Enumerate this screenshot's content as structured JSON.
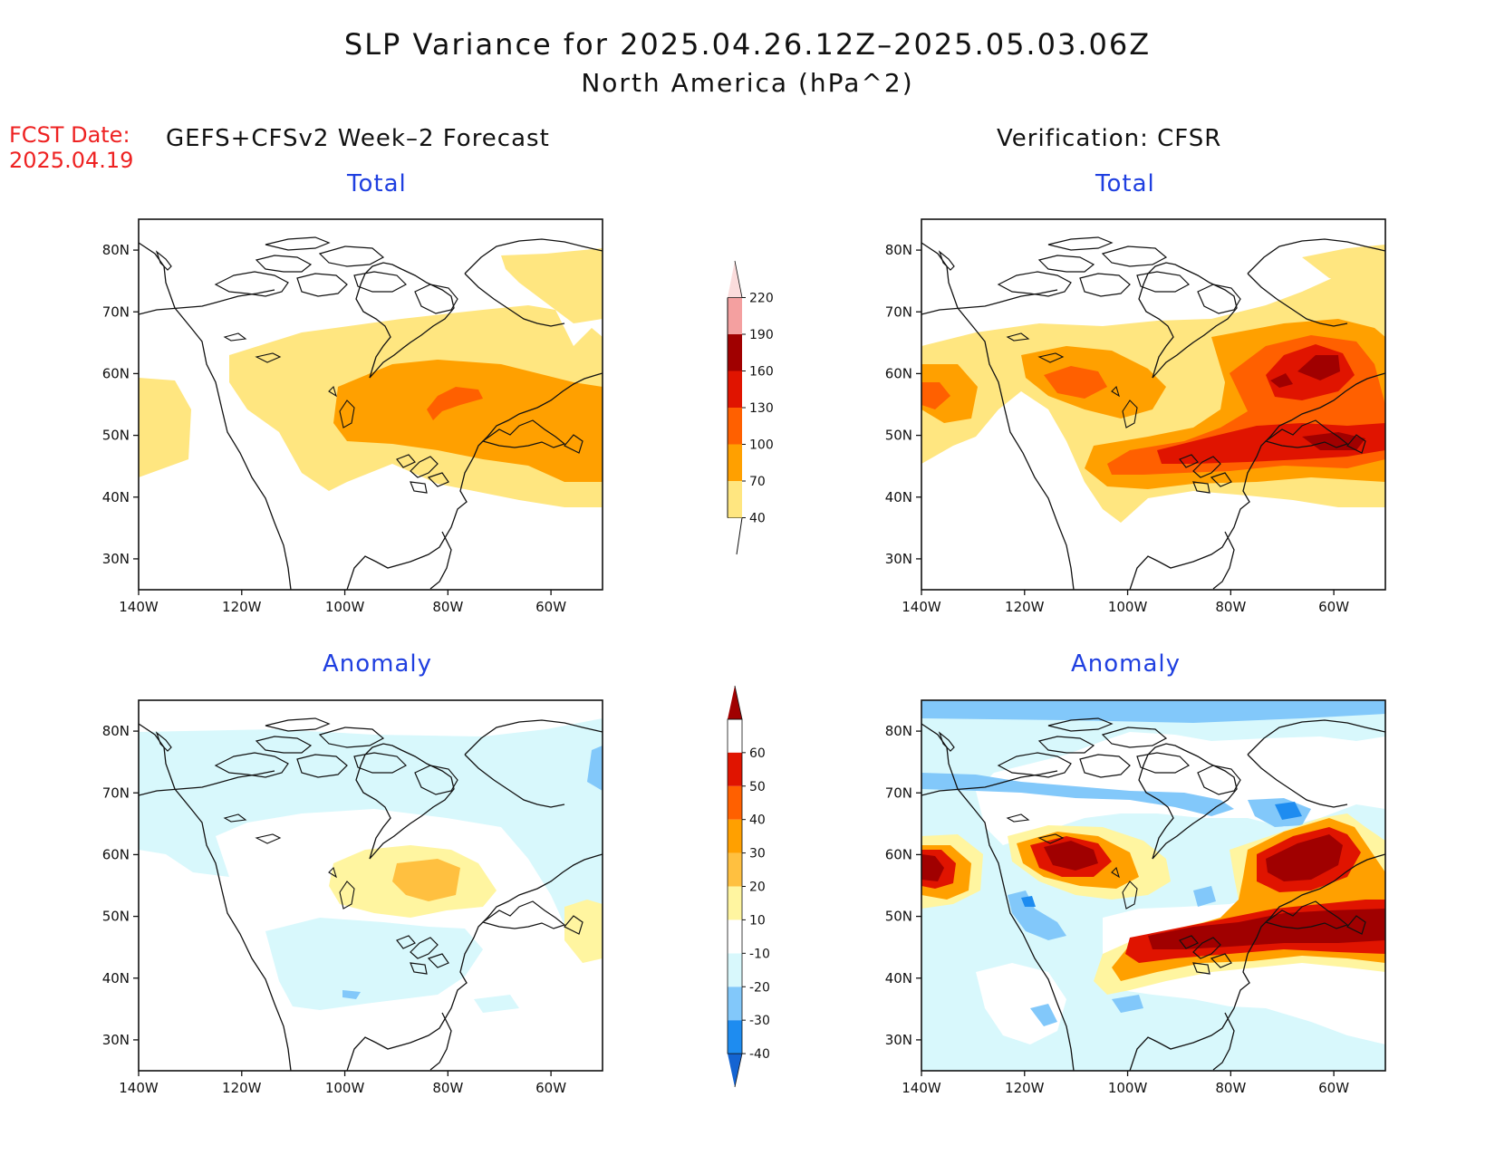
{
  "title": "SLP Variance for 2025.04.26.12Z–2025.05.03.06Z",
  "subtitle": "North America (hPa^2)",
  "fcst_date_label": "FCST Date:",
  "fcst_date_value": "2025.04.19",
  "left_header": "GEFS+CFSv2 Week–2 Forecast",
  "right_header": "Verification: CFSR",
  "panels": {
    "forecast_total": {
      "title": "Total"
    },
    "verification_total": {
      "title": "Total"
    },
    "forecast_anomaly": {
      "title": "Anomaly"
    },
    "verification_anomaly": {
      "title": "Anomaly"
    }
  },
  "axes": {
    "lon_labels": [
      "140W",
      "120W",
      "100W",
      "80W",
      "60W"
    ],
    "lon_values": [
      -140,
      -120,
      -100,
      -80,
      -60
    ],
    "lat_labels": [
      "80N",
      "70N",
      "60N",
      "50N",
      "40N",
      "30N"
    ],
    "lat_values": [
      80,
      70,
      60,
      50,
      40,
      30
    ],
    "lon_range": [
      -140,
      -50
    ],
    "lat_range": [
      25,
      85
    ]
  },
  "total_colorbar": {
    "levels": [
      "40",
      "70",
      "100",
      "130",
      "160",
      "190",
      "220"
    ],
    "colors": [
      "#ffe680",
      "#ffa000",
      "#ff6000",
      "#e01400",
      "#a00000",
      "#f4a0a0",
      "#fbdcdc"
    ]
  },
  "anomaly_colorbar": {
    "levels": [
      "-40",
      "-30",
      "-20",
      "-10",
      "10",
      "20",
      "30",
      "40",
      "50",
      "60"
    ],
    "colors": [
      "#1464d2",
      "#1e8cf0",
      "#82c8fa",
      "#d8f8fc",
      "#ffffff",
      "#fff5a0",
      "#ffc040",
      "#ffa000",
      "#ff6000",
      "#e01400",
      "#a00000"
    ]
  },
  "colors": {
    "title_blue": "#1f3fe0",
    "fcst_red": "#ee2222",
    "coast": "#111111"
  }
}
